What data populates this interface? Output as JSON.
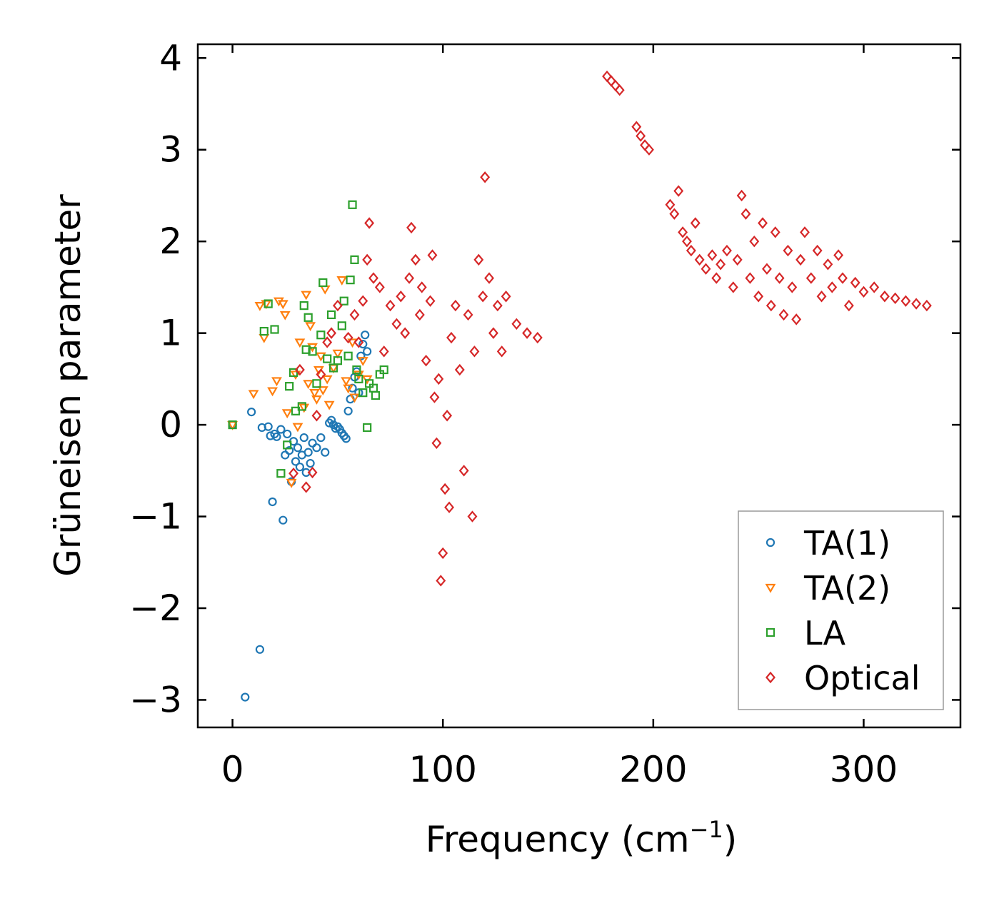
{
  "chart_data": {
    "type": "scatter",
    "title": "",
    "xlabel": "Frequency (cm",
    "xlabel_sup": "−1",
    "xlabel_close": ")",
    "ylabel": "Grüneisen parameter",
    "xlim": [
      -16.5,
      346
    ],
    "ylim": [
      -3.3,
      4.15
    ],
    "x_ticks": [
      0,
      100,
      200,
      300
    ],
    "x_tick_labels": [
      "0",
      "100",
      "200",
      "300"
    ],
    "y_ticks": [
      -3,
      -2,
      -1,
      0,
      1,
      2,
      3,
      4
    ],
    "y_tick_labels": [
      "−3",
      "−2",
      "−1",
      "0",
      "1",
      "2",
      "3",
      "4"
    ],
    "grid": false,
    "legend_position": "bottom-right",
    "series": [
      {
        "name": "TA(1)",
        "marker": "circle",
        "color": "#1f77b4",
        "points": [
          [
            0,
            0
          ],
          [
            6,
            -2.97
          ],
          [
            9,
            0.14
          ],
          [
            13,
            -2.45
          ],
          [
            14,
            -0.03
          ],
          [
            17,
            -0.02
          ],
          [
            18,
            -0.12
          ],
          [
            19,
            -0.84
          ],
          [
            20,
            -0.1
          ],
          [
            21,
            -0.13
          ],
          [
            23,
            -0.05
          ],
          [
            24,
            -1.04
          ],
          [
            25,
            -0.33
          ],
          [
            26,
            -0.1
          ],
          [
            27,
            -0.28
          ],
          [
            28,
            -0.62
          ],
          [
            29,
            -0.18
          ],
          [
            30,
            -0.4
          ],
          [
            31,
            -0.25
          ],
          [
            32,
            -0.46
          ],
          [
            33,
            -0.33
          ],
          [
            34,
            -0.14
          ],
          [
            35,
            -0.52
          ],
          [
            36,
            -0.3
          ],
          [
            37,
            -0.42
          ],
          [
            38,
            -0.2
          ],
          [
            40,
            -0.25
          ],
          [
            42,
            -0.14
          ],
          [
            44,
            -0.3
          ],
          [
            46,
            0.02
          ],
          [
            47,
            0.05
          ],
          [
            48,
            0.0
          ],
          [
            49,
            -0.04
          ],
          [
            50,
            -0.02
          ],
          [
            51,
            -0.05
          ],
          [
            52,
            -0.09
          ],
          [
            53,
            -0.12
          ],
          [
            54,
            -0.15
          ],
          [
            55,
            0.15
          ],
          [
            56,
            0.28
          ],
          [
            57,
            0.4
          ],
          [
            58,
            0.52
          ],
          [
            59,
            0.58
          ],
          [
            60,
            0.35
          ],
          [
            61,
            0.75
          ],
          [
            62,
            0.88
          ],
          [
            63,
            0.98
          ],
          [
            64,
            0.8
          ]
        ]
      },
      {
        "name": "TA(2)",
        "marker": "triangle-down",
        "color": "#ff7f0e",
        "points": [
          [
            0,
            0
          ],
          [
            10,
            0.34
          ],
          [
            13,
            1.3
          ],
          [
            15,
            0.95
          ],
          [
            16,
            1.32
          ],
          [
            19,
            0.37
          ],
          [
            21,
            0.48
          ],
          [
            22,
            1.35
          ],
          [
            24,
            1.32
          ],
          [
            25,
            1.2
          ],
          [
            26,
            0.13
          ],
          [
            28,
            -0.63
          ],
          [
            30,
            0.55
          ],
          [
            31,
            -0.02
          ],
          [
            32,
            0.9
          ],
          [
            34,
            0.19
          ],
          [
            35,
            1.42
          ],
          [
            36,
            0.45
          ],
          [
            37,
            1.08
          ],
          [
            38,
            0.85
          ],
          [
            39,
            0.35
          ],
          [
            40,
            0.28
          ],
          [
            41,
            0.6
          ],
          [
            42,
            0.75
          ],
          [
            43,
            0.38
          ],
          [
            44,
            1.48
          ],
          [
            45,
            0.5
          ],
          [
            46,
            0.22
          ],
          [
            48,
            0.62
          ],
          [
            50,
            0.78
          ],
          [
            52,
            1.58
          ],
          [
            54,
            0.48
          ],
          [
            55,
            0.4
          ],
          [
            57,
            0.9
          ],
          [
            58,
            0.3
          ],
          [
            60,
            0.55
          ],
          [
            62,
            0.7
          ],
          [
            64,
            0.5
          ]
        ]
      },
      {
        "name": "LA",
        "marker": "square",
        "color": "#2ca02c",
        "points": [
          [
            0,
            0
          ],
          [
            15,
            1.02
          ],
          [
            17,
            1.32
          ],
          [
            20,
            1.04
          ],
          [
            23,
            -0.53
          ],
          [
            26,
            -0.22
          ],
          [
            27,
            0.42
          ],
          [
            29,
            0.57
          ],
          [
            30,
            0.15
          ],
          [
            33,
            0.2
          ],
          [
            34,
            1.3
          ],
          [
            35,
            0.82
          ],
          [
            36,
            1.17
          ],
          [
            38,
            0.8
          ],
          [
            40,
            0.45
          ],
          [
            42,
            0.98
          ],
          [
            43,
            1.55
          ],
          [
            45,
            0.72
          ],
          [
            47,
            1.2
          ],
          [
            48,
            0.62
          ],
          [
            50,
            0.7
          ],
          [
            52,
            1.08
          ],
          [
            53,
            1.35
          ],
          [
            55,
            0.75
          ],
          [
            56,
            1.58
          ],
          [
            57,
            2.4
          ],
          [
            58,
            1.8
          ],
          [
            59,
            0.6
          ],
          [
            60,
            0.5
          ],
          [
            62,
            0.35
          ],
          [
            64,
            -0.03
          ],
          [
            65,
            0.45
          ],
          [
            67,
            0.4
          ],
          [
            68,
            0.32
          ],
          [
            70,
            0.55
          ],
          [
            72,
            0.6
          ]
        ]
      },
      {
        "name": "Optical",
        "marker": "diamond",
        "color": "#d62728",
        "points": [
          [
            29,
            -0.53
          ],
          [
            32,
            0.6
          ],
          [
            35,
            -0.68
          ],
          [
            38,
            -0.52
          ],
          [
            40,
            0.1
          ],
          [
            42,
            0.55
          ],
          [
            45,
            0.9
          ],
          [
            47,
            1.0
          ],
          [
            50,
            1.3
          ],
          [
            55,
            0.95
          ],
          [
            58,
            1.2
          ],
          [
            60,
            0.9
          ],
          [
            62,
            1.35
          ],
          [
            64,
            1.8
          ],
          [
            65,
            2.2
          ],
          [
            67,
            1.6
          ],
          [
            70,
            1.5
          ],
          [
            72,
            0.8
          ],
          [
            75,
            1.3
          ],
          [
            78,
            1.1
          ],
          [
            80,
            1.4
          ],
          [
            82,
            1.0
          ],
          [
            84,
            1.6
          ],
          [
            85,
            2.15
          ],
          [
            87,
            1.8
          ],
          [
            89,
            1.2
          ],
          [
            90,
            1.5
          ],
          [
            92,
            0.7
          ],
          [
            94,
            1.35
          ],
          [
            95,
            1.85
          ],
          [
            96,
            0.3
          ],
          [
            97,
            -0.2
          ],
          [
            98,
            0.5
          ],
          [
            99,
            -1.7
          ],
          [
            100,
            -1.4
          ],
          [
            101,
            -0.7
          ],
          [
            102,
            0.1
          ],
          [
            103,
            -0.9
          ],
          [
            104,
            0.95
          ],
          [
            106,
            1.3
          ],
          [
            108,
            0.6
          ],
          [
            110,
            -0.5
          ],
          [
            112,
            1.2
          ],
          [
            114,
            -1.0
          ],
          [
            115,
            0.8
          ],
          [
            117,
            1.8
          ],
          [
            119,
            1.4
          ],
          [
            120,
            2.7
          ],
          [
            122,
            1.6
          ],
          [
            124,
            1.0
          ],
          [
            126,
            1.3
          ],
          [
            128,
            0.8
          ],
          [
            130,
            1.4
          ],
          [
            135,
            1.1
          ],
          [
            140,
            1.0
          ],
          [
            145,
            0.95
          ],
          [
            178,
            3.8
          ],
          [
            180,
            3.75
          ],
          [
            182,
            3.7
          ],
          [
            184,
            3.65
          ],
          [
            192,
            3.25
          ],
          [
            194,
            3.15
          ],
          [
            196,
            3.05
          ],
          [
            198,
            3.0
          ],
          [
            208,
            2.4
          ],
          [
            210,
            2.3
          ],
          [
            212,
            2.55
          ],
          [
            214,
            2.1
          ],
          [
            216,
            2.0
          ],
          [
            218,
            1.9
          ],
          [
            220,
            2.2
          ],
          [
            222,
            1.8
          ],
          [
            225,
            1.7
          ],
          [
            228,
            1.85
          ],
          [
            230,
            1.6
          ],
          [
            232,
            1.75
          ],
          [
            235,
            1.9
          ],
          [
            238,
            1.5
          ],
          [
            240,
            1.8
          ],
          [
            242,
            2.5
          ],
          [
            244,
            2.3
          ],
          [
            246,
            1.6
          ],
          [
            248,
            2.0
          ],
          [
            250,
            1.4
          ],
          [
            252,
            2.2
          ],
          [
            254,
            1.7
          ],
          [
            256,
            1.3
          ],
          [
            258,
            2.1
          ],
          [
            260,
            1.6
          ],
          [
            262,
            1.2
          ],
          [
            264,
            1.9
          ],
          [
            266,
            1.5
          ],
          [
            268,
            1.15
          ],
          [
            270,
            1.8
          ],
          [
            272,
            2.1
          ],
          [
            275,
            1.6
          ],
          [
            278,
            1.9
          ],
          [
            280,
            1.4
          ],
          [
            283,
            1.75
          ],
          [
            285,
            1.5
          ],
          [
            288,
            1.85
          ],
          [
            290,
            1.6
          ],
          [
            293,
            1.3
          ],
          [
            296,
            1.55
          ],
          [
            300,
            1.45
          ],
          [
            305,
            1.5
          ],
          [
            310,
            1.4
          ],
          [
            315,
            1.38
          ],
          [
            320,
            1.35
          ],
          [
            325,
            1.32
          ],
          [
            330,
            1.3
          ]
        ]
      }
    ]
  }
}
